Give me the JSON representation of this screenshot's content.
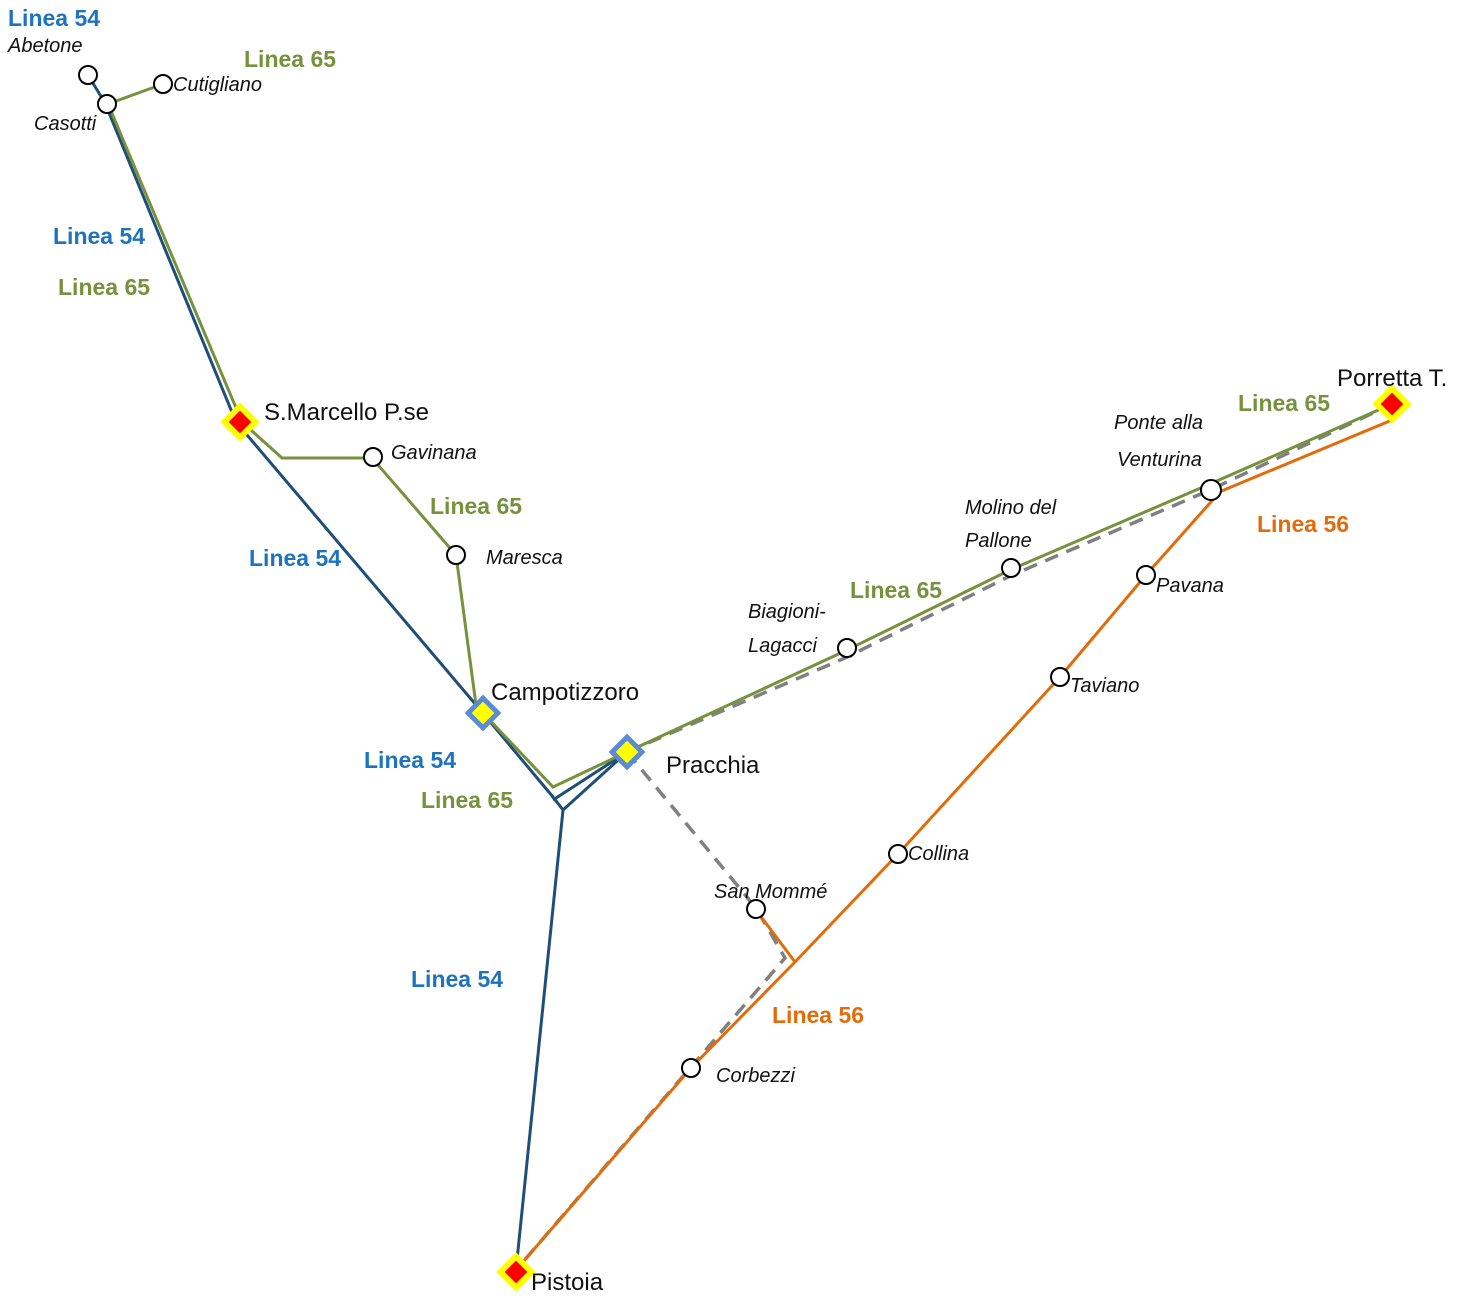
{
  "colors": {
    "linea54": "#1F4E79",
    "linea54_label": "#1E73BE",
    "linea65": "#76923C",
    "linea56": "#E36C0A",
    "rail": "#808080",
    "hub_fill": "#FFFF00",
    "hub_main_border": "#FFFF00",
    "hub_main_center": "#FF0000",
    "hub_secondary_border": "#5B8BD6"
  },
  "line_labels": {
    "l54": "Linea 54",
    "l65": "Linea 65",
    "l56": "Linea 56"
  },
  "hubs": {
    "s_marcello": "S.Marcello P.se",
    "campotizzoro": "Campotizzoro",
    "pracchia": "Pracchia",
    "porretta": "Porretta T.",
    "pistoia": "Pistoia"
  },
  "stops": {
    "abetone": "Abetone",
    "cutigliano": "Cutigliano",
    "casotti": "Casotti",
    "gavinana": "Gavinana",
    "maresca": "Maresca",
    "biagioni_1": "Biagioni-",
    "biagioni_2": "Lagacci",
    "molino_1": "Molino del",
    "molino_2": "Pallone",
    "ponte_1": "Ponte alla",
    "ponte_2": "Venturina",
    "pavana": "Pavana",
    "taviano": "Taviano",
    "collina": "Collina",
    "san_momme": "San Mommé",
    "corbezzi": "Corbezzi"
  },
  "legend_marker_types": [
    "main-hub-icon",
    "secondary-hub-icon",
    "stop-icon"
  ]
}
